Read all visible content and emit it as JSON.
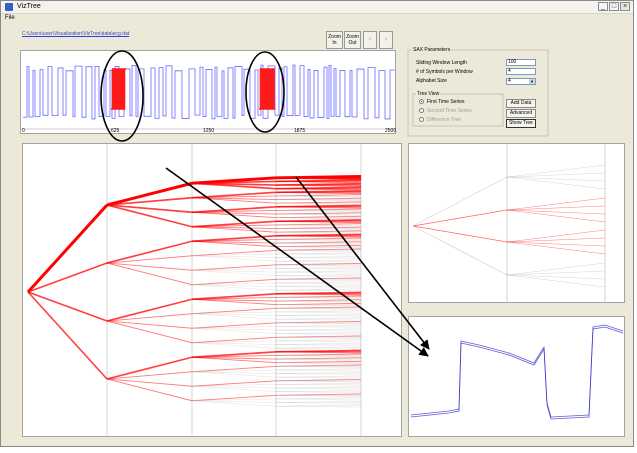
{
  "window": {
    "title": "VizTree",
    "icon": "app-icon",
    "minimize_glyph": "_",
    "maximize_glyph": "□",
    "close_glyph": "×"
  },
  "menu": {
    "file": "File"
  },
  "path": "C:\\Users\\user\\Visualization\\VizTree\\data\\ecg.dat",
  "toolbar": {
    "zoom_in": [
      "Zoom",
      "In"
    ],
    "zoom_out": [
      "Zoom",
      "Out"
    ],
    "prev_glyph": "<",
    "next_glyph": ">"
  },
  "time_series": {
    "ticks": [
      "0",
      "625",
      "1250",
      "1875",
      "2500"
    ],
    "series_color": "#6a6aff",
    "highlight_color": "#ff1a1a"
  },
  "sax": {
    "group_title": "SAX Parameters",
    "window_length_label": "Sliding Window Length",
    "window_length_value": "100",
    "symbols_label": "# of Symbols per Window",
    "symbols_value": "4",
    "alphabet_label": "Alphabet Size",
    "alphabet_value": "4",
    "tree_view_title": "Tree View",
    "radio_first": "First Time Series",
    "radio_second": "Second Time Series",
    "radio_diff": "Difference Tree",
    "add_data": "Add Data",
    "advanced": "Advanced",
    "show_tree": "Show Tree"
  },
  "colors": {
    "frequent_branch": "#ff0000",
    "rare_branch": "#b0b0b0",
    "annotation": "#000000",
    "subsequence": "#3333cc"
  }
}
